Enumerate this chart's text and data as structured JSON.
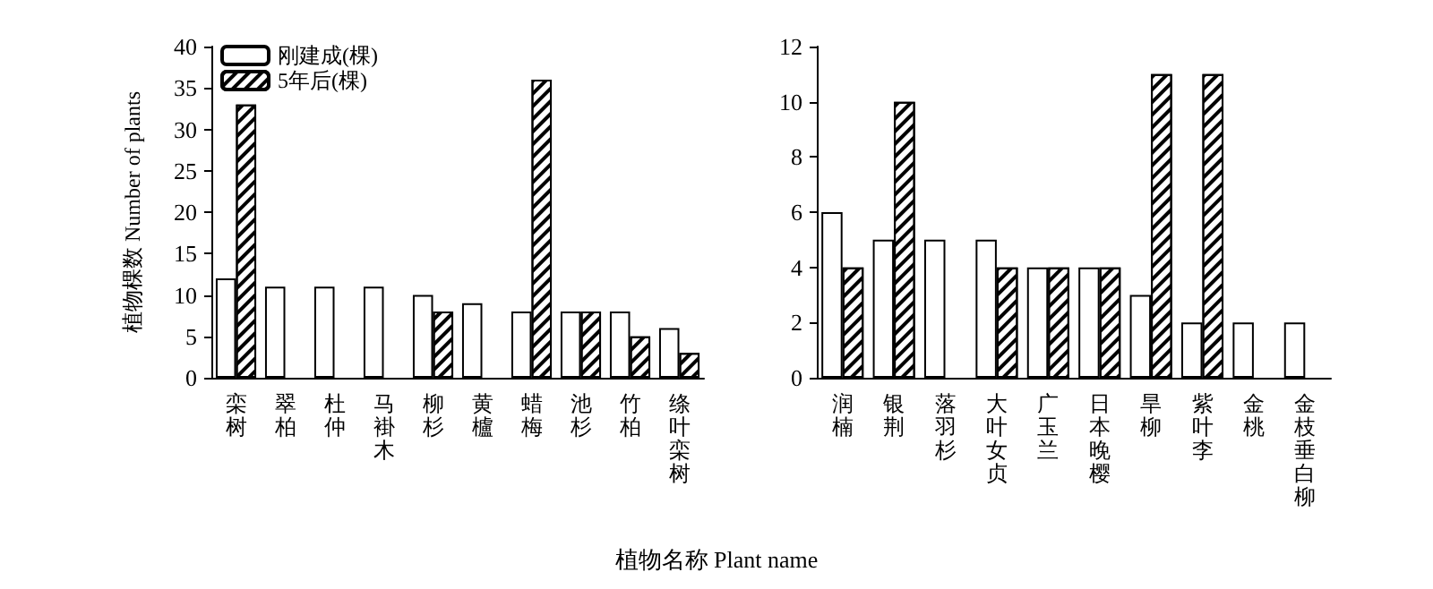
{
  "chart_data": [
    {
      "type": "bar",
      "ylabel": "植物棵数 Number of plants",
      "xlabel": "植物名称 Plant name",
      "categories": [
        "栾树",
        "翠柏",
        "杜仲",
        "马褂木",
        "柳杉",
        "黄櫨",
        "蜡梅",
        "池杉",
        "竹柏",
        "绦叶栾树"
      ],
      "series": [
        {
          "name": "刚建成(棵)",
          "color": "#ffffff",
          "values": [
            12,
            11,
            11,
            11,
            10,
            9,
            8,
            8,
            8,
            6
          ]
        },
        {
          "name": "5年后(棵)",
          "color": "#ffffff",
          "values": [
            33,
            null,
            null,
            null,
            8,
            null,
            36,
            8,
            5,
            3
          ]
        }
      ],
      "ylim": [
        0,
        40
      ],
      "yticks": [
        0,
        5,
        10,
        15,
        20,
        25,
        30,
        35,
        40
      ],
      "grid": false,
      "legend": "top left"
    },
    {
      "type": "bar",
      "categories": [
        "润楠",
        "银荆",
        "落羽杉",
        "大叶女贞",
        "广玉兰",
        "日本晚樱",
        "旱柳",
        "紫叶李",
        "金桃",
        "金枝垂白柳"
      ],
      "series": [
        {
          "color": "#ffffff",
          "values": [
            6,
            5,
            5,
            5,
            4,
            4,
            3,
            2,
            2,
            2
          ]
        },
        {
          "color": "#ffffff",
          "values": [
            4,
            10,
            null,
            4,
            4,
            4,
            11,
            11,
            null,
            null
          ]
        }
      ],
      "ylim": [
        0,
        12
      ],
      "yticks": [
        0,
        2,
        4,
        6,
        8,
        10,
        12
      ],
      "grid": false
    }
  ]
}
